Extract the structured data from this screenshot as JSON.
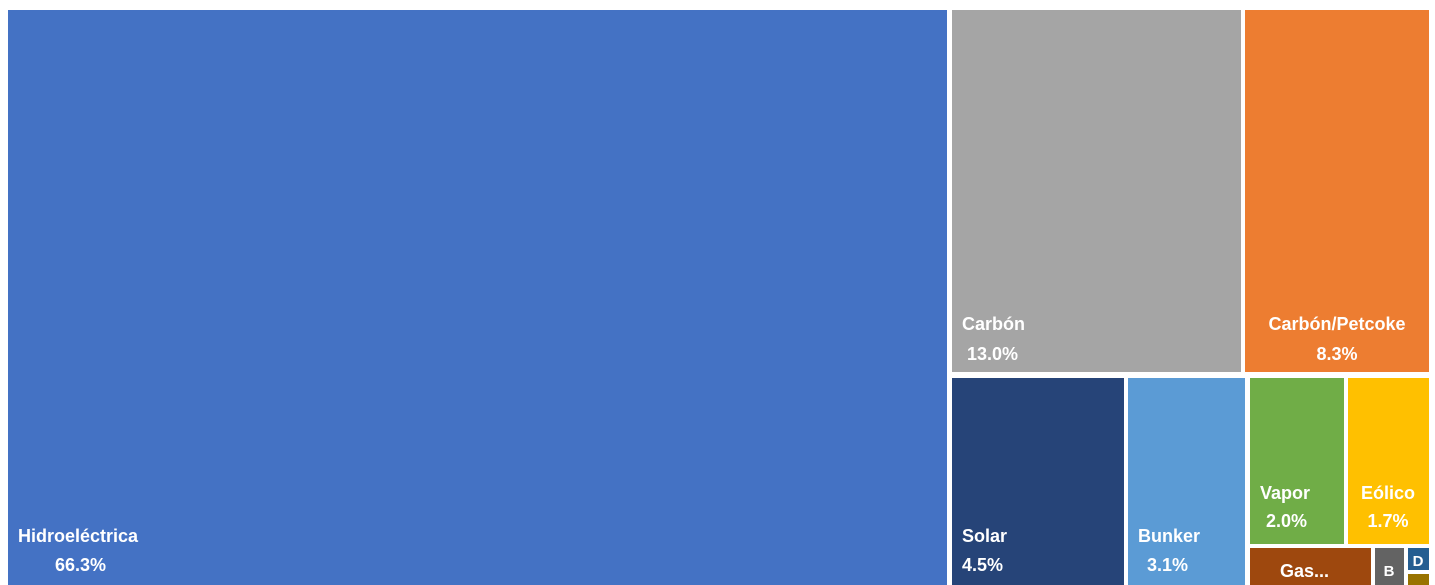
{
  "chart_data": {
    "type": "treemap",
    "items": [
      {
        "label": "Hidroeléctrica",
        "value_label": "66.3%",
        "value": 66.3,
        "color": "#4472C4"
      },
      {
        "label": "Carbón",
        "value_label": "13.0%",
        "value": 13.0,
        "color": "#A5A5A5"
      },
      {
        "label": "Carbón/Petcoke",
        "value_label": "8.3%",
        "value": 8.3,
        "color": "#ED7D31"
      },
      {
        "label": "Solar",
        "value_label": "4.5%",
        "value": 4.5,
        "color": "#264478"
      },
      {
        "label": "Bunker",
        "value_label": "3.1%",
        "value": 3.1,
        "color": "#5B9BD5"
      },
      {
        "label": "Vapor",
        "value_label": "2.0%",
        "value": 2.0,
        "color": "#70AD47"
      },
      {
        "label": "Eólico",
        "value_label": "1.7%",
        "value": 1.7,
        "color": "#FFC000"
      },
      {
        "label": "Gas...",
        "value_label": "",
        "value": 0.7,
        "color": "#9E480E"
      },
      {
        "label": "B",
        "value_label": "",
        "value": 0.2,
        "color": "#636363"
      },
      {
        "label": "D",
        "value_label": "",
        "value": 0.1,
        "color": "#255E91"
      },
      {
        "label": "",
        "value_label": "",
        "value": 0.05,
        "color": "#997300"
      }
    ]
  }
}
